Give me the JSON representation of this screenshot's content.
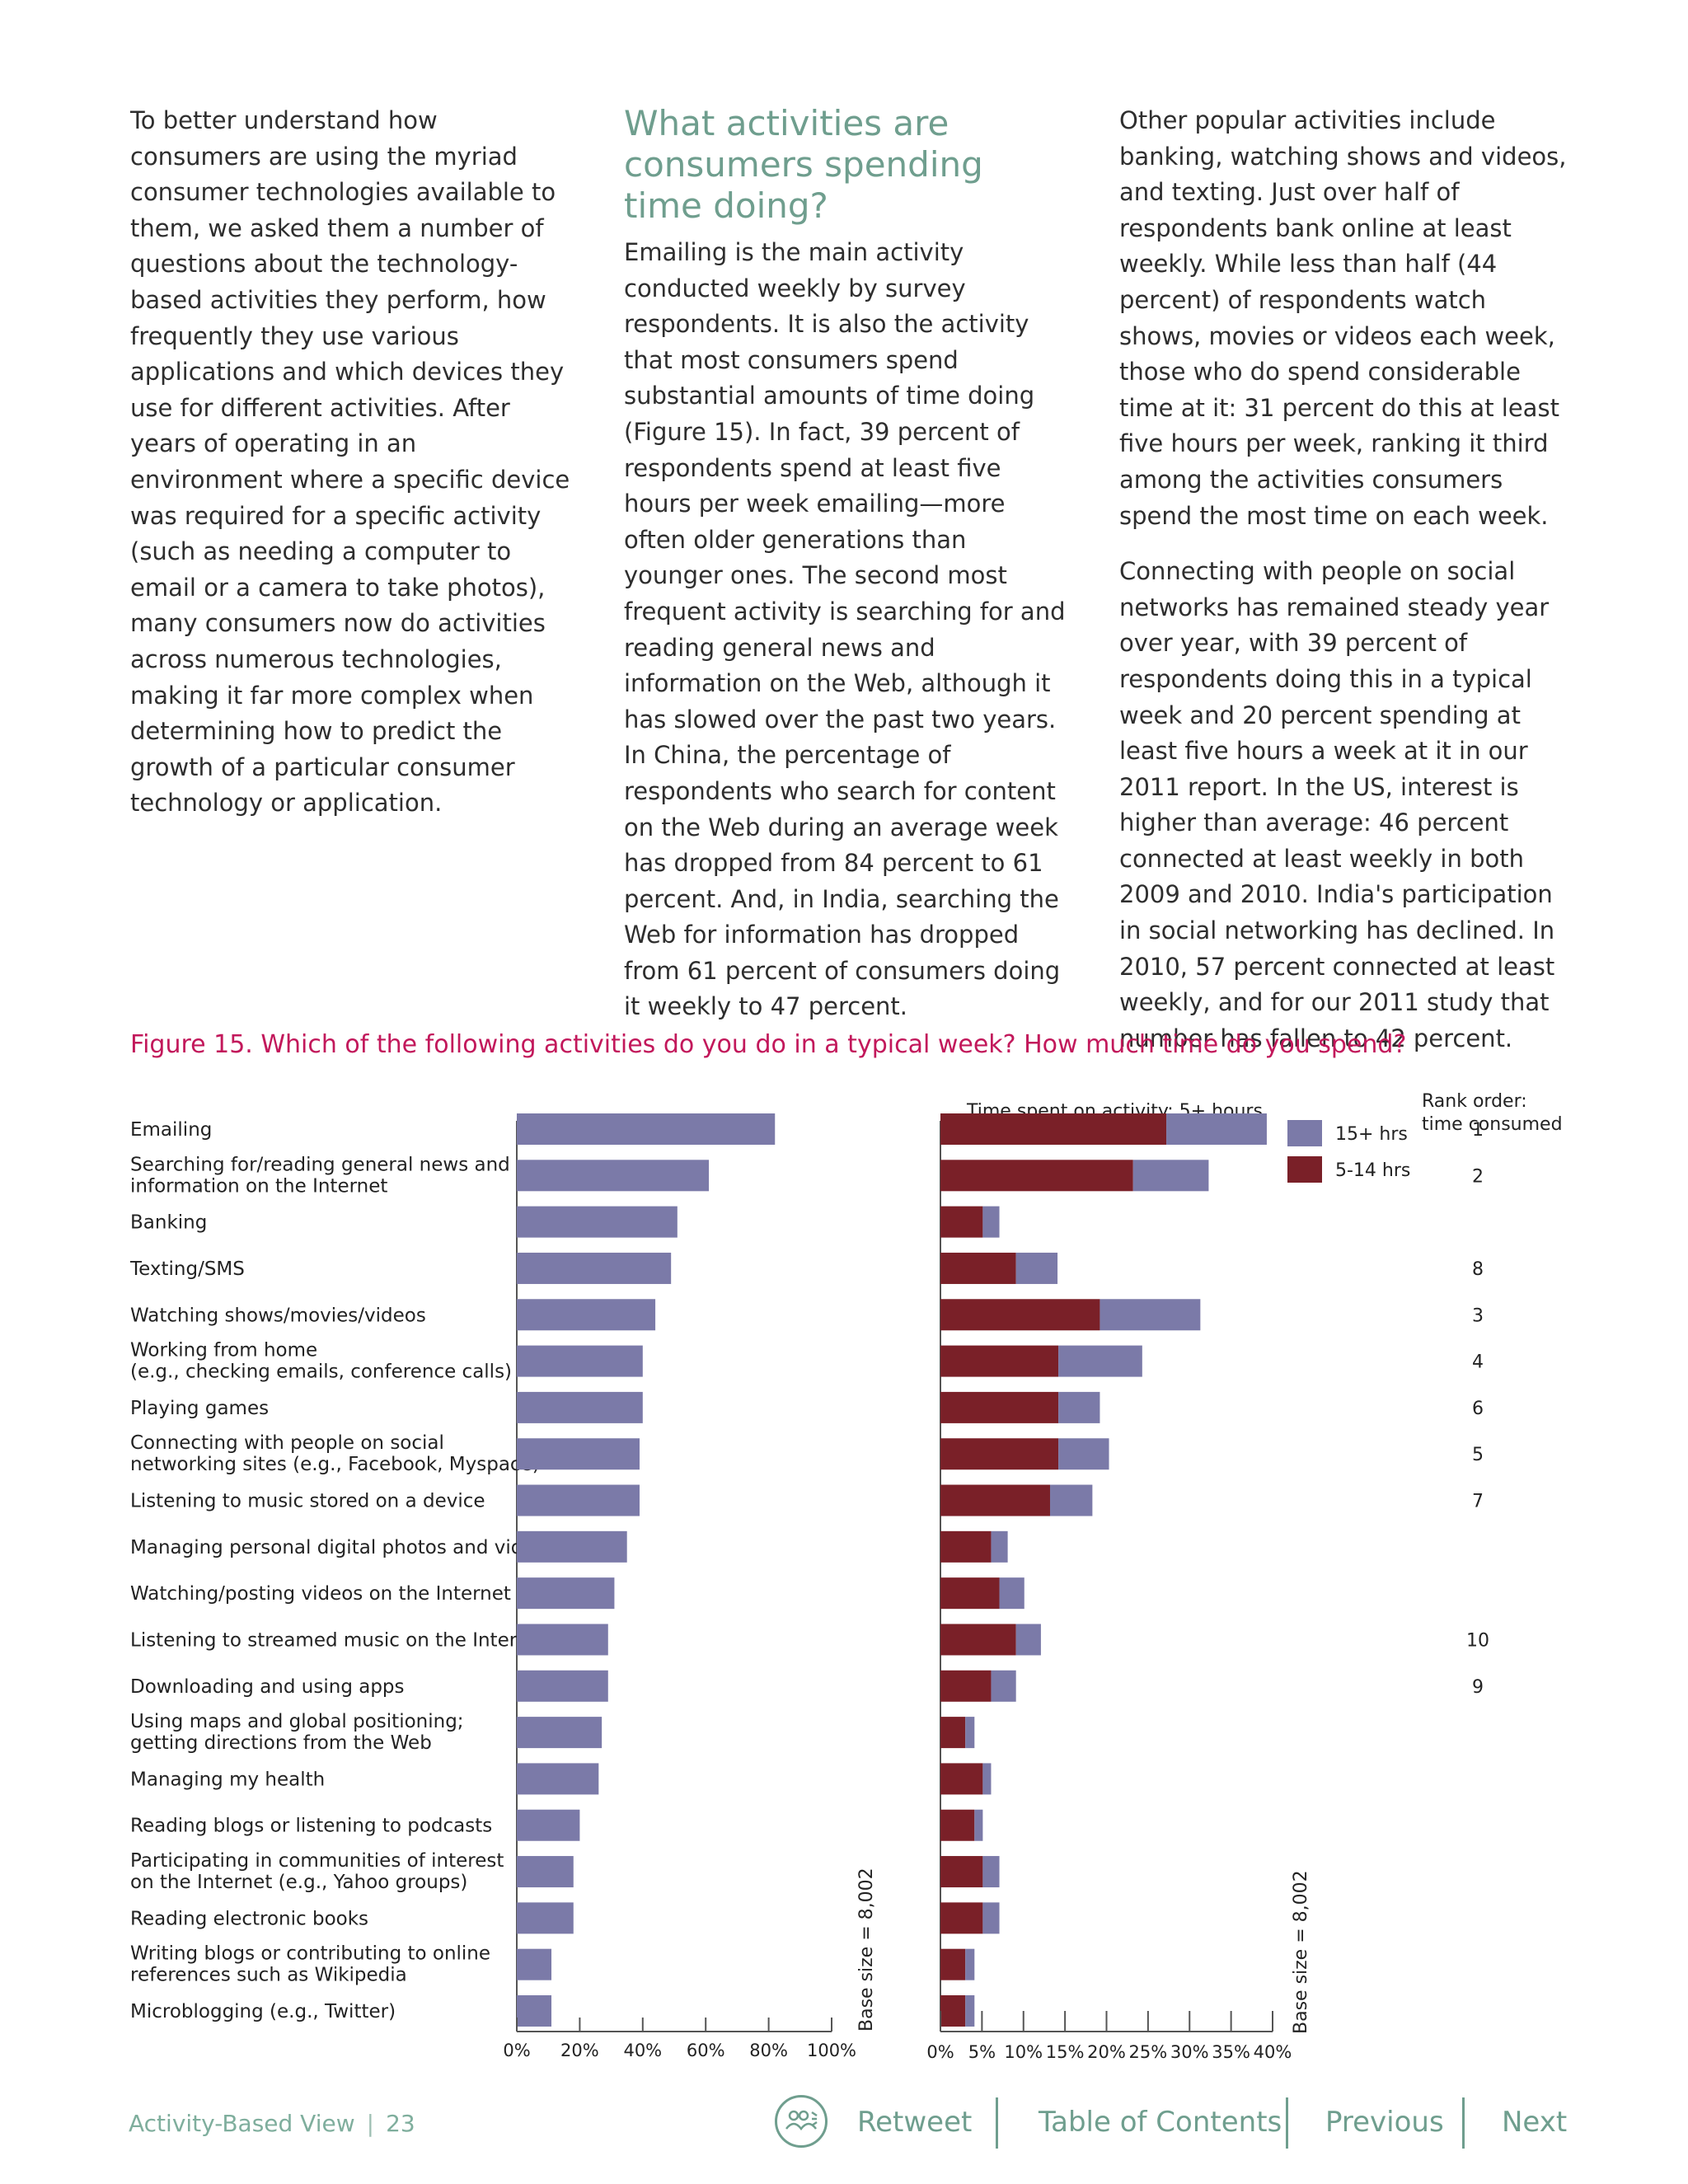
{
  "columns": {
    "col1": [
      "To better understand how consumers are using the myriad consumer technologies available to them, we asked them a number of questions about the technology-based activities they perform, how frequently they use various applications and which devices they use for different activities. After years of operating in an environment where a specific device was required for a specific activity (such as needing a computer to email or a camera to take photos), many consumers now do activities across numerous technologies, making it far more complex when determining how to predict the growth of a particular consumer technology or application."
    ],
    "col2_heading": "What activities are consumers spending time doing?",
    "col2": [
      "Emailing is the main activity conducted weekly by survey respondents. It is also the activity that most consumers spend substantial amounts of time doing (Figure 15). In fact, 39 percent of respondents spend at least five hours per week emailing—more often older generations than younger ones. The second most frequent activity is searching for and reading general news and information on the Web, although it has slowed over the past two years. In China, the percentage of respondents who search for content on the Web during an average week has dropped from 84 percent to 61 percent. And, in India, searching the Web for information has dropped from 61 percent of consumers doing it weekly to 47 percent."
    ],
    "col3": [
      "Other popular activities include banking, watching shows and videos, and texting. Just over half of respondents bank online at least weekly. While less than half (44 percent) of respondents watch shows, movies or videos each week, those who do spend considerable time at it: 31 percent do this at least five hours per week, ranking it third among the activities consumers spend the most time on each week.",
      "Connecting with people on social networks has remained steady year over year, with 39 percent of respondents doing this in a typical week and 20 percent spending at least five hours a week at it in our 2011 report. In the US, interest is higher than average: 46 percent connected at least weekly in both 2009 and 2010. India's participation in social networking has declined. In 2010, 57 percent connected at least weekly, and for our 2011 study that number has fallen to 42 percent."
    ]
  },
  "figure_title": "Figure 15. Which of the following activities do you do in a typical week? How much time do you spend?",
  "chart_data": [
    {
      "type": "bar",
      "orientation": "horizontal",
      "categories": [
        "Emailing",
        "Searching for/reading general news and|information on the Internet",
        "Banking",
        "Texting/SMS",
        "Watching shows/movies/videos",
        "Working from home|(e.g., checking emails, conference calls)",
        "Playing games",
        "Connecting with people on social|networking sites (e.g., Facebook, Myspace)",
        "Listening to music stored on a device",
        "Managing personal digital photos and videos",
        "Watching/posting videos on the Internet",
        "Listening to streamed music on the Internet",
        "Downloading and using apps",
        "Using maps and global positioning;|getting directions from the Web",
        "Managing my health",
        "Reading blogs or listening to podcasts",
        "Participating in communities of interest|on the Internet (e.g., Yahoo groups)",
        "Reading electronic books",
        "Writing blogs or contributing to online|references such as Wikipedia",
        "Microblogging (e.g., Twitter)"
      ],
      "series": [
        {
          "values": [
            82,
            61,
            51,
            49,
            44,
            40,
            40,
            39,
            39,
            35,
            31,
            29,
            29,
            27,
            26,
            20,
            18,
            18,
            11,
            11
          ]
        }
      ],
      "xlim": [
        0,
        100
      ],
      "ticks": [
        "0%",
        "20%",
        "40%",
        "60%",
        "80%",
        "100%"
      ],
      "base_note": "Base size = 8,002",
      "color": "#7b7aa8"
    },
    {
      "type": "bar",
      "stacked": true,
      "orientation": "horizontal",
      "title": "Time spent on activity: 5+ hours",
      "series": [
        {
          "name": "5-14 hrs",
          "color": "#7a2028",
          "values": [
            27.2,
            23.2,
            5.1,
            9.1,
            19.2,
            14.2,
            14.2,
            14.2,
            13.2,
            6.1,
            7.1,
            9.1,
            6.1,
            3.0,
            5.1,
            4.1,
            5.1,
            5.1,
            3.0,
            3.0
          ]
        },
        {
          "name": "15+ hrs",
          "color": "#7b7aa8",
          "values": [
            12.1,
            9.1,
            2.0,
            5.0,
            12.1,
            10.1,
            5.0,
            6.1,
            5.1,
            2.0,
            3.0,
            3.0,
            3.0,
            1.1,
            1.0,
            1.0,
            2.0,
            2.0,
            1.1,
            1.1
          ]
        }
      ],
      "xlim": [
        0,
        40
      ],
      "ticks": [
        "0%",
        "5%",
        "10%",
        "15%",
        "20%",
        "25%",
        "30%",
        "35%",
        "40%"
      ],
      "base_note": "Base size = 8,002",
      "rank_header": [
        "Rank order:",
        "time consumed"
      ],
      "ranks": [
        "1",
        "2",
        "",
        "8",
        "3",
        "4",
        "6",
        "5",
        "7",
        "",
        "",
        "10",
        "9",
        "",
        "",
        "",
        "",
        "",
        "",
        ""
      ]
    }
  ],
  "footer": {
    "section": "Activity-Based View",
    "page": "23",
    "nav": [
      "Retweet",
      "Table of Contents",
      "Previous",
      "Next"
    ]
  }
}
